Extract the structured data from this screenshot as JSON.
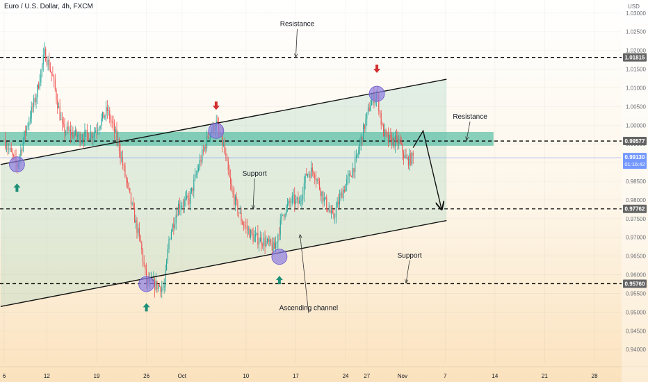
{
  "header": {
    "title": "Euro / U.S. Dollar, 4h, FXCM"
  },
  "axis": {
    "currency": "USD"
  },
  "colors": {
    "up": "#26a69a",
    "down": "#ef5350",
    "zone": "#5bbfa6",
    "channel_fill": "#a8d8c0",
    "circle": "#8c7ce0",
    "arrow_up": "#1e8f78",
    "arrow_down": "#d32f2f",
    "current_price": "#2962ff"
  },
  "current": {
    "price": "0.99130",
    "countdown": "01:16:42"
  },
  "chart_data": {
    "type": "candlestick",
    "ylim": [
      0.9365,
      1.0335
    ],
    "yticks": [
      "1.03000",
      "1.02500",
      "1.02000",
      "1.01500",
      "1.01000",
      "1.00500",
      "1.00000",
      "0.99500",
      "0.99000",
      "0.98500",
      "0.98000",
      "0.97500",
      "0.97000",
      "0.96500",
      "0.96000",
      "0.95500",
      "0.95000",
      "0.94500",
      "0.94000"
    ],
    "xticks": [
      {
        "label": "6",
        "day": 0
      },
      {
        "label": "12",
        "day": 6
      },
      {
        "label": "19",
        "day": 13
      },
      {
        "label": "26",
        "day": 20
      },
      {
        "label": "Oct",
        "day": 25
      },
      {
        "label": "10",
        "day": 34
      },
      {
        "label": "17",
        "day": 41
      },
      {
        "label": "24",
        "day": 48
      },
      {
        "label": "27",
        "day": 51
      },
      {
        "label": "Nov",
        "day": 56
      },
      {
        "label": "7",
        "day": 62
      },
      {
        "label": "14",
        "day": 69
      },
      {
        "label": "21",
        "day": 76
      },
      {
        "label": "28",
        "day": 83
      }
    ],
    "price_levels": [
      {
        "value": 1.01815,
        "label": "1.01815"
      },
      {
        "value": 0.99577,
        "label": "0.99577"
      },
      {
        "value": 0.97762,
        "label": "0.97762"
      },
      {
        "value": 0.9576,
        "label": "0.95760"
      }
    ],
    "resistance_zone": {
      "from": 0.9945,
      "to": 0.9982,
      "day_end": 68.8
    },
    "channel": {
      "upper": {
        "d1": -0.5,
        "p1": 0.9895,
        "d2": 62.2,
        "p2": 1.0123
      },
      "lower": {
        "d1": -0.5,
        "p1": 0.9515,
        "d2": 62.2,
        "p2": 0.9745
      }
    },
    "projection": [
      [
        57.5,
        0.994
      ],
      [
        58.9,
        0.9985
      ],
      [
        61.5,
        0.9775
      ]
    ],
    "annotations": [
      {
        "text": "Resistance",
        "day": 41.2,
        "price": 1.0265,
        "target": [
          41.0,
          1.0182
        ]
      },
      {
        "text": "Resistance",
        "day": 65.5,
        "price": 1.0017,
        "target": [
          65.0,
          0.996
        ]
      },
      {
        "text": "Support",
        "day": 35.2,
        "price": 0.9865,
        "target": [
          35.0,
          0.9777
        ]
      },
      {
        "text": "Support",
        "day": 57.0,
        "price": 0.9646,
        "target": [
          56.5,
          0.9578
        ]
      },
      {
        "text": "Ascending channel",
        "day": 42.8,
        "price": 0.9505,
        "target": [
          41.6,
          0.9707
        ]
      }
    ],
    "touch_circles": [
      {
        "day": 1.8,
        "price": 0.9895
      },
      {
        "day": 20.0,
        "price": 0.9575
      },
      {
        "day": 29.8,
        "price": 0.9985
      },
      {
        "day": 38.7,
        "price": 0.9648
      },
      {
        "day": 52.4,
        "price": 1.0084
      }
    ],
    "signal_arrows": [
      {
        "day": 1.8,
        "price": 0.9833,
        "dir": "up"
      },
      {
        "day": 20.0,
        "price": 0.9513,
        "dir": "up"
      },
      {
        "day": 38.7,
        "price": 0.9586,
        "dir": "up"
      },
      {
        "day": 29.8,
        "price": 1.0052,
        "dir": "down"
      },
      {
        "day": 52.4,
        "price": 1.0151,
        "dir": "down"
      }
    ],
    "price_path": [
      [
        0,
        0.9962
      ],
      [
        1.8,
        0.989
      ],
      [
        3.0,
        0.9985
      ],
      [
        4.5,
        1.008
      ],
      [
        5.7,
        1.0195
      ],
      [
        6.8,
        1.013
      ],
      [
        8.2,
        0.999
      ],
      [
        10.5,
        0.9968
      ],
      [
        12.5,
        0.9978
      ],
      [
        14.5,
        1.004
      ],
      [
        16.0,
        0.9955
      ],
      [
        17.5,
        0.982
      ],
      [
        19.2,
        0.968
      ],
      [
        20.0,
        0.958
      ],
      [
        22.5,
        0.9565
      ],
      [
        23.2,
        0.97
      ],
      [
        24.5,
        0.9785
      ],
      [
        26.0,
        0.98
      ],
      [
        27.5,
        0.99
      ],
      [
        28.8,
        0.9978
      ],
      [
        29.8,
        1.0005
      ],
      [
        30.8,
        0.9945
      ],
      [
        32.0,
        0.982
      ],
      [
        33.5,
        0.974
      ],
      [
        35.0,
        0.97
      ],
      [
        36.5,
        0.969
      ],
      [
        38.0,
        0.967
      ],
      [
        39.2,
        0.9765
      ],
      [
        40.5,
        0.98
      ],
      [
        41.5,
        0.979
      ],
      [
        42.5,
        0.987
      ],
      [
        43.5,
        0.988
      ],
      [
        45.0,
        0.98
      ],
      [
        46.2,
        0.975
      ],
      [
        47.5,
        0.982
      ],
      [
        48.5,
        0.986
      ],
      [
        49.5,
        0.9905
      ],
      [
        50.2,
        0.9965
      ],
      [
        51.5,
        1.006
      ],
      [
        52.4,
        1.0085
      ],
      [
        53.2,
        0.9985
      ],
      [
        54.0,
        0.996
      ],
      [
        55.5,
        0.9955
      ],
      [
        56.5,
        0.9905
      ],
      [
        57.5,
        0.9913
      ]
    ]
  }
}
